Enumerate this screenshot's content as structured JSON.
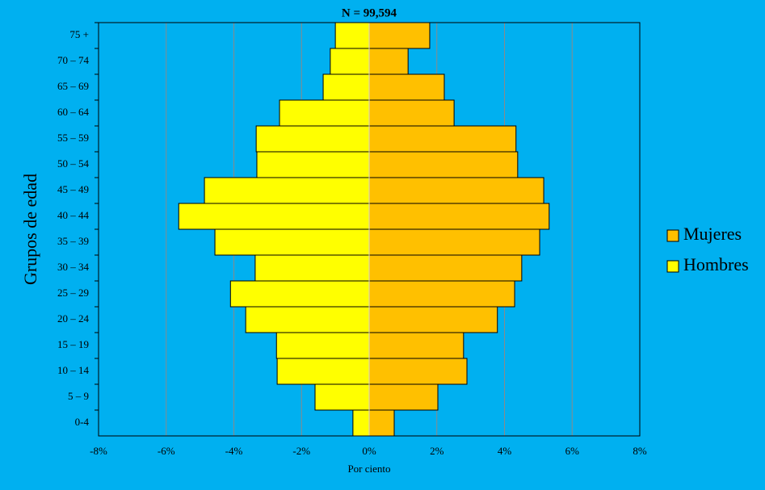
{
  "chart_data": {
    "type": "pyramid",
    "title": "N = 99,594",
    "xlabel": "Por ciento",
    "ylabel": "Grupos de edad",
    "categories": [
      "0-4",
      "5 – 9",
      "10 – 14",
      "15 – 19",
      "20 – 24",
      "25 – 29",
      "30 – 34",
      "35 – 39",
      "40 – 44",
      "45 – 49",
      "50 – 54",
      "55 – 59",
      "60 – 64",
      "65 – 69",
      "70 – 74",
      "75 +"
    ],
    "series": [
      {
        "name": "Mujeres",
        "color": "#ffc000",
        "values": [
          0.74,
          2.03,
          2.89,
          2.79,
          3.79,
          4.3,
          4.51,
          5.04,
          5.32,
          5.16,
          4.39,
          4.34,
          2.51,
          2.22,
          1.15,
          1.79
        ]
      },
      {
        "name": "Hombres",
        "color": "#ffff00",
        "values": [
          -0.48,
          -1.6,
          -2.72,
          -2.74,
          -3.65,
          -4.1,
          -3.37,
          -4.56,
          -5.63,
          -4.87,
          -3.32,
          -3.34,
          -2.65,
          -1.36,
          -1.15,
          -1.0
        ]
      }
    ],
    "xlim": [
      -8,
      8
    ],
    "xticks": [
      {
        "value": -8,
        "label": "-8%"
      },
      {
        "value": -6,
        "label": "-6%"
      },
      {
        "value": -4,
        "label": "-4%"
      },
      {
        "value": -2,
        "label": "-2%"
      },
      {
        "value": 0,
        "label": "0%"
      },
      {
        "value": 2,
        "label": "2%"
      },
      {
        "value": 4,
        "label": "4%"
      },
      {
        "value": 6,
        "label": "6%"
      },
      {
        "value": 8,
        "label": "8%"
      }
    ],
    "grid": true,
    "legend": "right"
  }
}
